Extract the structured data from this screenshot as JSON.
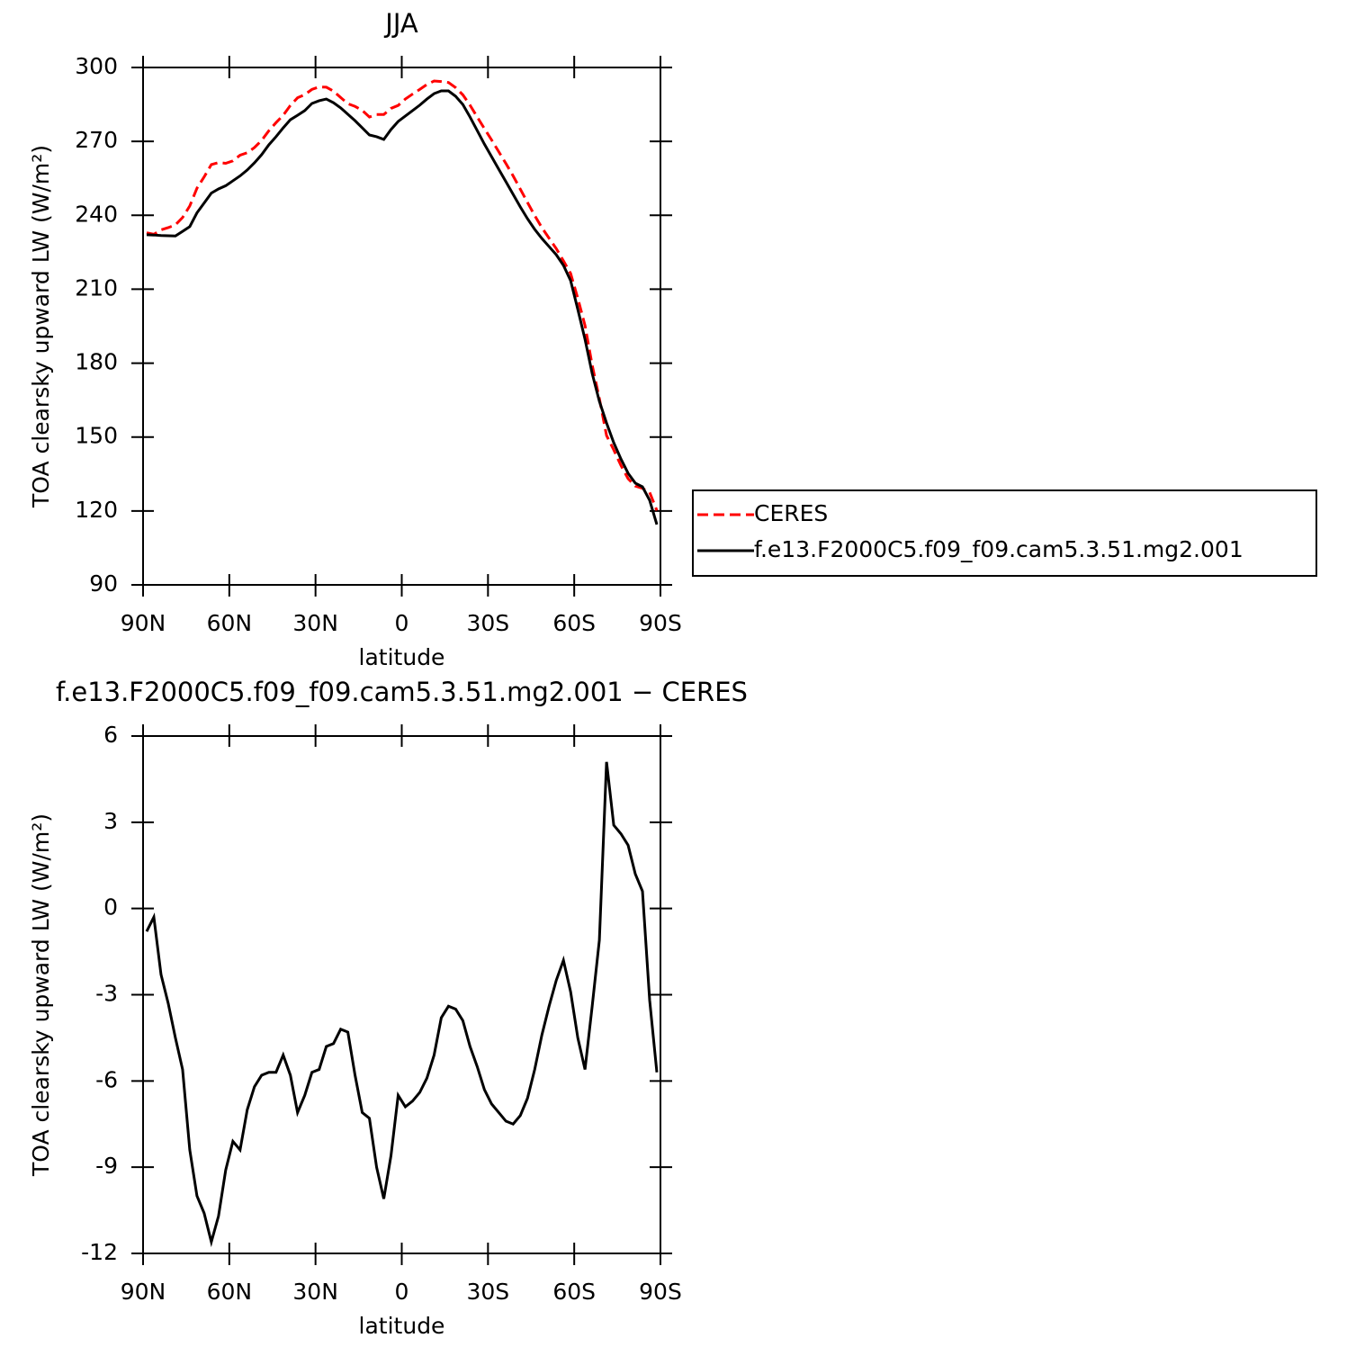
{
  "chart_data": [
    {
      "type": "line",
      "title": "JJA",
      "x_label": "latitude",
      "y_label": "TOA clearsky upward LW (W/m²)",
      "x": [
        88.75,
        86.25,
        83.75,
        81.25,
        78.75,
        76.25,
        73.75,
        71.25,
        68.75,
        66.25,
        63.75,
        61.25,
        58.75,
        56.25,
        53.75,
        51.25,
        48.75,
        46.25,
        43.75,
        41.25,
        38.75,
        36.25,
        33.75,
        31.25,
        28.75,
        26.25,
        23.75,
        21.25,
        18.75,
        16.25,
        13.75,
        11.25,
        8.75,
        6.25,
        3.75,
        1.25,
        -1.25,
        -3.75,
        -6.25,
        -8.75,
        -11.25,
        -13.75,
        -16.25,
        -18.75,
        -21.25,
        -23.75,
        -26.25,
        -28.75,
        -31.25,
        -33.75,
        -36.25,
        -38.75,
        -41.25,
        -43.75,
        -46.25,
        -48.75,
        -51.25,
        -53.75,
        -56.25,
        -58.75,
        -61.25,
        -63.75,
        -66.25,
        -68.75,
        -71.25,
        -73.75,
        -76.25,
        -78.75,
        -81.25,
        -83.75,
        -86.25,
        -88.75
      ],
      "xlim": [
        90,
        -90
      ],
      "xticks": [
        {
          "value": 90,
          "label": "90N"
        },
        {
          "value": 60,
          "label": "60N"
        },
        {
          "value": 30,
          "label": "30N"
        },
        0,
        {
          "value": -30,
          "label": "30S"
        },
        {
          "value": -60,
          "label": "60S"
        },
        {
          "value": -90,
          "label": "90S"
        }
      ],
      "ylim": [
        90,
        300
      ],
      "yticks": [
        90,
        120,
        150,
        180,
        210,
        240,
        270,
        300
      ],
      "legend": "right",
      "series": [
        {
          "name": "CERES",
          "color": "#ff0000",
          "dash": "dashed",
          "values": [
            232.9,
            232.3,
            234.1,
            235.0,
            236.1,
            239.1,
            243.8,
            251.0,
            255.6,
            260.6,
            261.4,
            261.1,
            262.1,
            264.4,
            265.4,
            267.5,
            270.4,
            274.3,
            277.6,
            280.6,
            284.6,
            287.7,
            289.0,
            291.1,
            292.1,
            292.0,
            290.4,
            287.8,
            285.3,
            284.2,
            282.6,
            279.9,
            280.9,
            280.9,
            283.4,
            284.6,
            287.2,
            289.2,
            291.1,
            293.1,
            294.5,
            294.3,
            293.9,
            291.8,
            288.9,
            284.7,
            279.9,
            275.2,
            270.6,
            265.8,
            261.0,
            256.0,
            250.6,
            245.2,
            239.9,
            235.0,
            230.7,
            226.5,
            221.5,
            216.4,
            206.3,
            195.3,
            179.2,
            165.6,
            150.6,
            144.8,
            138.5,
            133.1,
            130.1,
            129.2,
            127.5,
            120.2
          ]
        },
        {
          "name": "f.e13.F2000C5.f09_f09.cam5.3.51.mg2.001",
          "color": "#000000",
          "dash": "solid",
          "values": [
            232.1,
            232.0,
            231.8,
            231.7,
            231.6,
            233.5,
            235.4,
            241.0,
            245.0,
            249.0,
            250.7,
            252.0,
            254.0,
            256.0,
            258.4,
            261.3,
            264.6,
            268.6,
            271.9,
            275.5,
            278.8,
            280.6,
            282.5,
            285.4,
            286.5,
            287.2,
            285.7,
            283.6,
            281.0,
            278.4,
            275.5,
            272.6,
            271.9,
            270.8,
            274.8,
            278.1,
            280.3,
            282.5,
            284.7,
            287.2,
            289.4,
            290.5,
            290.5,
            288.3,
            285.0,
            279.9,
            274.4,
            268.9,
            263.8,
            258.7,
            253.6,
            248.5,
            243.4,
            238.6,
            234.3,
            230.6,
            227.3,
            224.0,
            219.7,
            213.5,
            201.8,
            189.7,
            175.8,
            164.5,
            155.7,
            147.7,
            141.1,
            135.3,
            131.3,
            129.8,
            124.3,
            114.5
          ]
        }
      ]
    },
    {
      "type": "line",
      "title": "f.e13.F2000C5.f09_f09.cam5.3.51.mg2.001 − CERES",
      "x_label": "latitude",
      "y_label": "TOA clearsky upward LW (W/m²)",
      "x": [
        88.75,
        86.25,
        83.75,
        81.25,
        78.75,
        76.25,
        73.75,
        71.25,
        68.75,
        66.25,
        63.75,
        61.25,
        58.75,
        56.25,
        53.75,
        51.25,
        48.75,
        46.25,
        43.75,
        41.25,
        38.75,
        36.25,
        33.75,
        31.25,
        28.75,
        26.25,
        23.75,
        21.25,
        18.75,
        16.25,
        13.75,
        11.25,
        8.75,
        6.25,
        3.75,
        1.25,
        -1.25,
        -3.75,
        -6.25,
        -8.75,
        -11.25,
        -13.75,
        -16.25,
        -18.75,
        -21.25,
        -23.75,
        -26.25,
        -28.75,
        -31.25,
        -33.75,
        -36.25,
        -38.75,
        -41.25,
        -43.75,
        -46.25,
        -48.75,
        -51.25,
        -53.75,
        -56.25,
        -58.75,
        -61.25,
        -63.75,
        -66.25,
        -68.75,
        -71.25,
        -73.75,
        -76.25,
        -78.75,
        -81.25,
        -83.75,
        -86.25,
        -88.75
      ],
      "xlim": [
        90,
        -90
      ],
      "xticks": [
        {
          "value": 90,
          "label": "90N"
        },
        {
          "value": 60,
          "label": "60N"
        },
        {
          "value": 30,
          "label": "30N"
        },
        0,
        {
          "value": -30,
          "label": "30S"
        },
        {
          "value": -60,
          "label": "60S"
        },
        {
          "value": -90,
          "label": "90S"
        }
      ],
      "ylim": [
        -12,
        6
      ],
      "yticks": [
        -12,
        -9,
        -6,
        -3,
        0,
        3,
        6
      ],
      "series": [
        {
          "color": "#000000",
          "dash": "solid",
          "values": [
            -0.8,
            -0.3,
            -2.3,
            -3.3,
            -4.5,
            -5.6,
            -8.4,
            -10.0,
            -10.6,
            -11.6,
            -10.7,
            -9.1,
            -8.1,
            -8.4,
            -7.0,
            -6.2,
            -5.8,
            -5.7,
            -5.7,
            -5.1,
            -5.8,
            -7.1,
            -6.5,
            -5.7,
            -5.6,
            -4.8,
            -4.7,
            -4.2,
            -4.3,
            -5.8,
            -7.1,
            -7.3,
            -9.0,
            -10.1,
            -8.6,
            -6.5,
            -6.9,
            -6.7,
            -6.4,
            -5.9,
            -5.1,
            -3.8,
            -3.4,
            -3.5,
            -3.9,
            -4.8,
            -5.5,
            -6.3,
            -6.8,
            -7.1,
            -7.4,
            -7.5,
            -7.2,
            -6.6,
            -5.6,
            -4.4,
            -3.4,
            -2.5,
            -1.8,
            -2.9,
            -4.5,
            -5.6,
            -3.4,
            -1.1,
            5.1,
            2.9,
            2.6,
            2.2,
            1.2,
            0.6,
            -3.2,
            -5.7
          ]
        }
      ]
    }
  ]
}
